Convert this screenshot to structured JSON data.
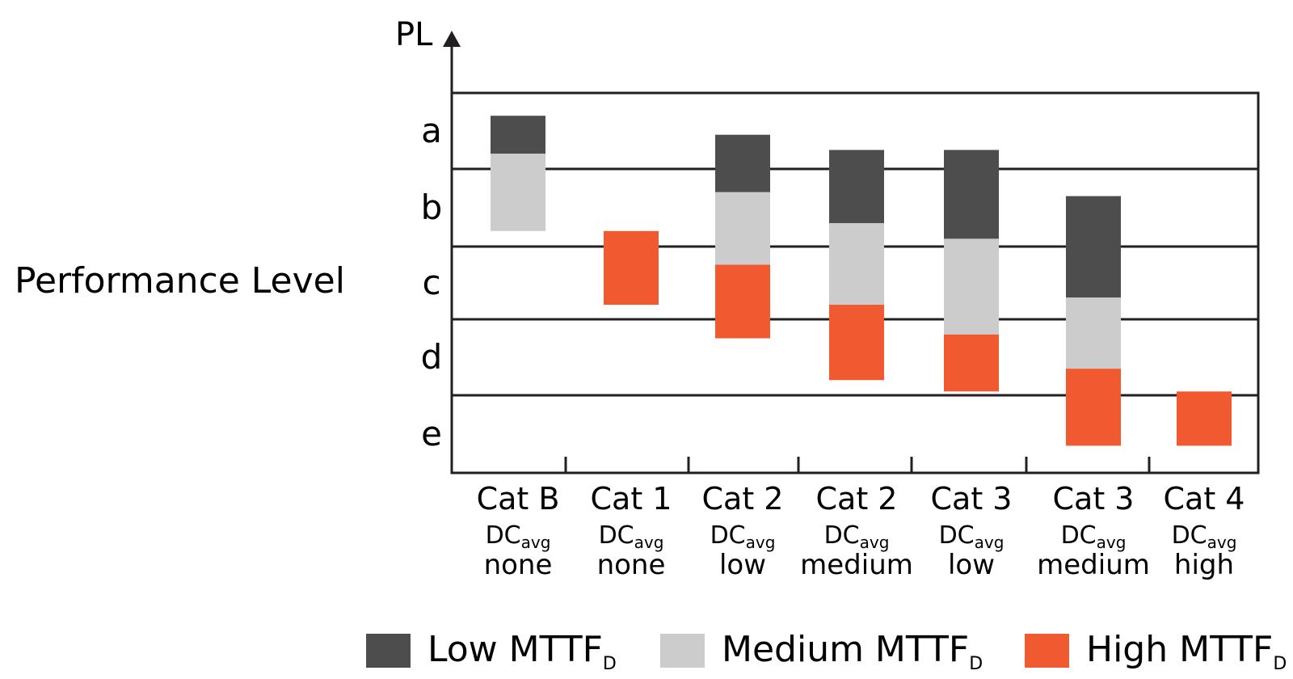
{
  "colors": {
    "low": "#4d4d4d",
    "medium": "#cccccc",
    "high": "#f15a31",
    "axis": "#231f20"
  },
  "chart_data": {
    "type": "bar",
    "y_axis_label": "PL",
    "y_title": "Performance Level",
    "levels": [
      "a",
      "b",
      "c",
      "d",
      "e"
    ],
    "categories": [
      {
        "cat": "Cat B",
        "dc": "DC",
        "dc_sub": "avg",
        "desc": "none"
      },
      {
        "cat": "Cat 1",
        "dc": "DC",
        "dc_sub": "avg",
        "desc": "none"
      },
      {
        "cat": "Cat 2",
        "dc": "DC",
        "dc_sub": "avg",
        "desc": "low"
      },
      {
        "cat": "Cat 2",
        "dc": "DC",
        "dc_sub": "avg",
        "desc": "medium"
      },
      {
        "cat": "Cat 3",
        "dc": "DC",
        "dc_sub": "avg",
        "desc": "low"
      },
      {
        "cat": "Cat 3",
        "dc": "DC",
        "dc_sub": "avg",
        "desc": "medium"
      },
      {
        "cat": "Cat 4",
        "dc": "DC",
        "dc_sub": "avg",
        "desc": "high"
      }
    ],
    "series": [
      {
        "key": "low",
        "name": "Low MTTF",
        "sub": "D",
        "ranges": [
          [
            0.3,
            0.8
          ],
          null,
          [
            0.55,
            1.3
          ],
          [
            0.75,
            1.7
          ],
          [
            0.75,
            1.9
          ],
          [
            1.35,
            2.7
          ],
          null
        ]
      },
      {
        "key": "medium",
        "name": "Medium MTTF",
        "sub": "D",
        "ranges": [
          [
            0.8,
            1.8
          ],
          null,
          [
            1.3,
            2.25
          ],
          [
            1.7,
            2.8
          ],
          [
            1.9,
            3.2
          ],
          [
            2.7,
            3.65
          ],
          null
        ]
      },
      {
        "key": "high",
        "name": "High MTTF",
        "sub": "D",
        "ranges": [
          null,
          [
            1.8,
            2.8
          ],
          [
            2.25,
            3.25
          ],
          [
            2.8,
            3.8
          ],
          [
            3.2,
            3.95
          ],
          [
            3.65,
            4.65
          ],
          [
            3.95,
            4.65
          ]
        ]
      }
    ],
    "value_note_unused": ""
  }
}
